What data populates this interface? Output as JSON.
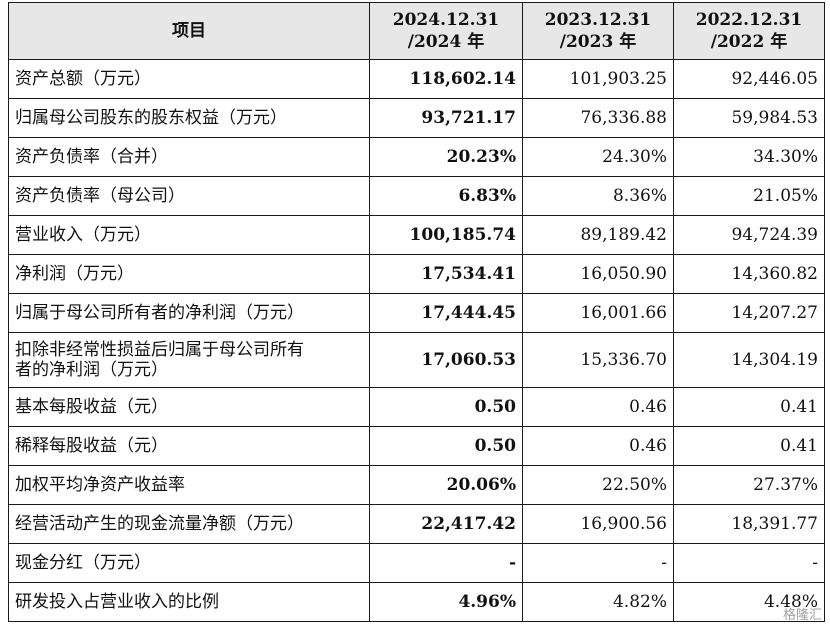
{
  "header": {
    "col0": "项目",
    "col1_line1": "2024.12.31",
    "col1_line2": "/2024 年",
    "col2_line1": "2023.12.31",
    "col2_line2": "/2023 年",
    "col3_line1": "2022.12.31",
    "col3_line2": "/2022 年"
  },
  "rows": [
    {
      "label": "资产总额（万元）",
      "v2024": "118,602.14",
      "v2023": "101,903.25",
      "v2022": "92,446.05"
    },
    {
      "label": "归属母公司股东的股东权益（万元）",
      "v2024": "93,721.17",
      "v2023": "76,336.88",
      "v2022": "59,984.53"
    },
    {
      "label": "资产负债率（合并）",
      "v2024": "20.23%",
      "v2023": "24.30%",
      "v2022": "34.30%"
    },
    {
      "label": "资产负债率（母公司）",
      "v2024": "6.83%",
      "v2023": "8.36%",
      "v2022": "21.05%"
    },
    {
      "label": "营业收入（万元）",
      "v2024": "100,185.74",
      "v2023": "89,189.42",
      "v2022": "94,724.39"
    },
    {
      "label": "净利润（万元）",
      "v2024": "17,534.41",
      "v2023": "16,050.90",
      "v2022": "14,360.82"
    },
    {
      "label": "归属于母公司所有者的净利润（万元）",
      "v2024": "17,444.45",
      "v2023": "16,001.66",
      "v2022": "14,207.27"
    },
    {
      "label_line1": "扣除非经常性损益后归属于母公司所有",
      "label_line2": "者的净利润（万元）",
      "v2024": "17,060.53",
      "v2023": "15,336.70",
      "v2022": "14,304.19"
    },
    {
      "label": "基本每股收益（元）",
      "v2024": "0.50",
      "v2023": "0.46",
      "v2022": "0.41"
    },
    {
      "label": "稀释每股收益（元）",
      "v2024": "0.50",
      "v2023": "0.46",
      "v2022": "0.41"
    },
    {
      "label": "加权平均净资产收益率",
      "v2024": "20.06%",
      "v2023": "22.50%",
      "v2022": "27.37%"
    },
    {
      "label": "经营活动产生的现金流量净额（万元）",
      "v2024": "22,417.42",
      "v2023": "16,900.56",
      "v2022": "18,391.77"
    },
    {
      "label": "现金分红（万元）",
      "v2024": "-",
      "v2023": "-",
      "v2022": "-"
    },
    {
      "label": "研发投入占营业收入的比例",
      "v2024": "4.96%",
      "v2023": "4.82%",
      "v2022": "4.48%"
    }
  ],
  "watermark": "格隆汇"
}
